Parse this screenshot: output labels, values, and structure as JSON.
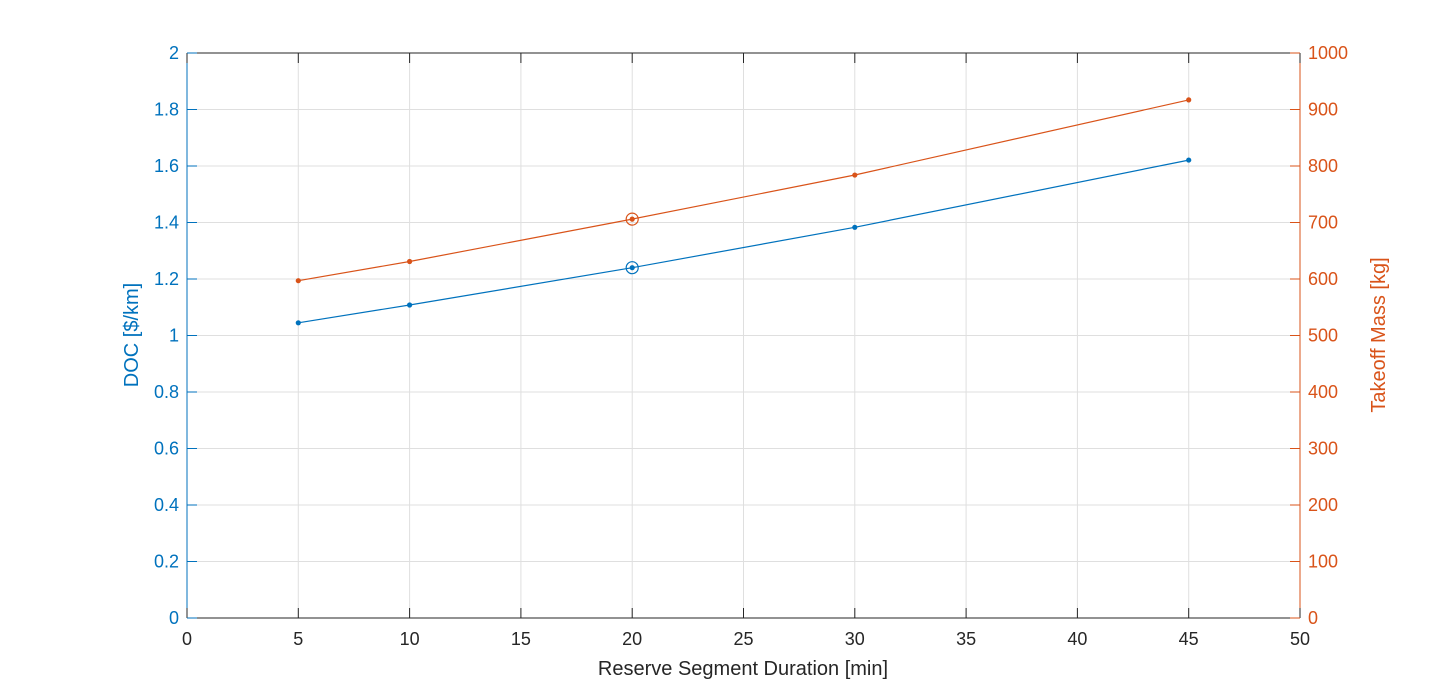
{
  "chart_data": {
    "type": "line",
    "xlabel": "Reserve Segment Duration [min]",
    "ylabel_left": "DOC [$/km]",
    "ylabel_right": "Takeoff Mass [kg]",
    "xlim": [
      0,
      50
    ],
    "ylim_left": [
      0,
      2
    ],
    "ylim_right": [
      0,
      1000
    ],
    "x_ticks": [
      0,
      5,
      10,
      15,
      20,
      25,
      30,
      35,
      40,
      45,
      50
    ],
    "y_left_ticks": [
      "0",
      "0.2",
      "0.4",
      "0.6",
      "0.8",
      "1",
      "1.2",
      "1.4",
      "1.6",
      "1.8",
      "2"
    ],
    "y_right_ticks": [
      "0",
      "100",
      "200",
      "300",
      "400",
      "500",
      "600",
      "700",
      "800",
      "900",
      "1000"
    ],
    "grid": true,
    "colors": {
      "left": "#0072BD",
      "right": "#D95319",
      "axis": "#262626",
      "grid": "#dfdfdf"
    },
    "series": [
      {
        "axis": "left",
        "x": [
          5,
          10,
          20,
          30,
          45
        ],
        "values": [
          1.045,
          1.108,
          1.24,
          1.383,
          1.621
        ],
        "highlight_x": 20
      },
      {
        "axis": "right",
        "x": [
          5,
          10,
          20,
          30,
          45
        ],
        "values": [
          597,
          631,
          706,
          784,
          917
        ],
        "highlight_x": 20
      }
    ]
  }
}
